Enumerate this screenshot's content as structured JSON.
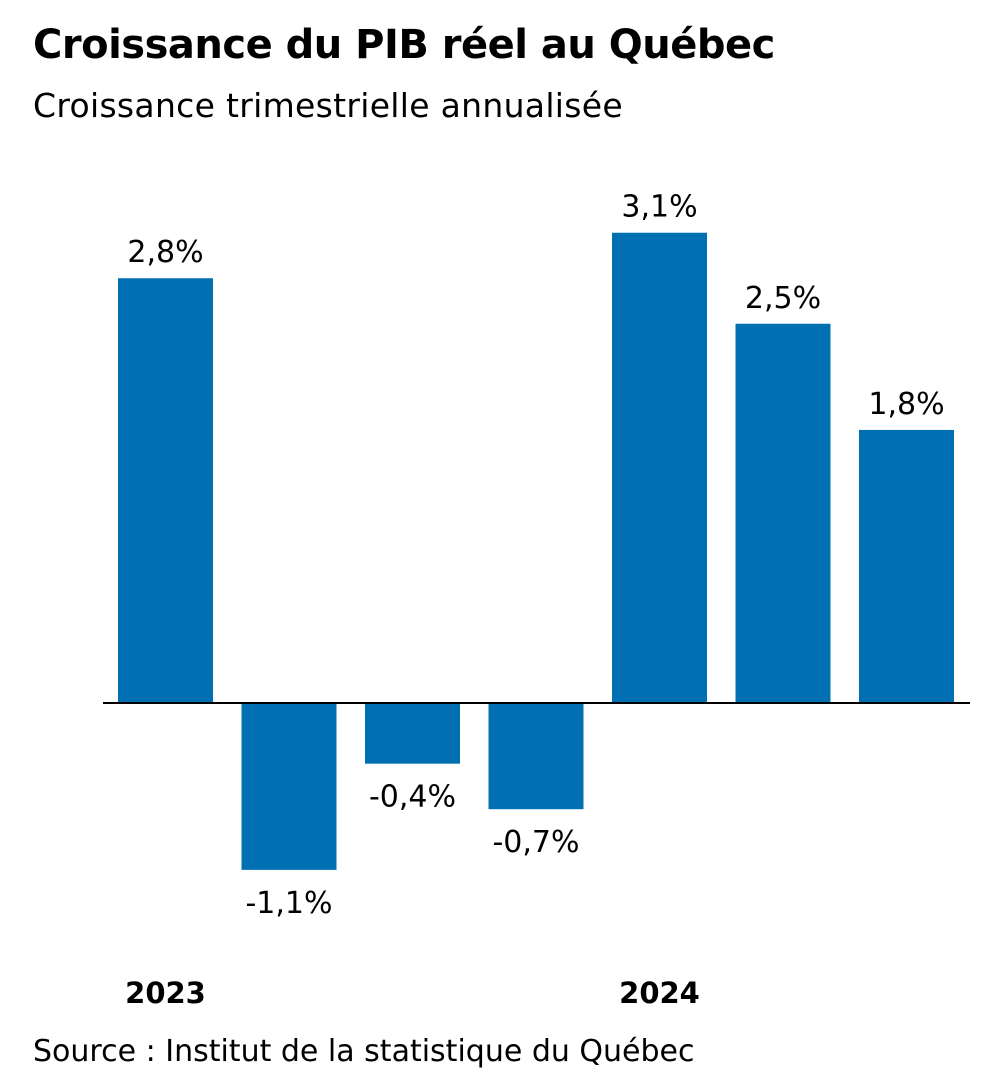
{
  "title": "Croissance du PIB réel au Québec",
  "subtitle": "Croissance trimestrielle annualisée",
  "source": "Source : Institut de la statistique du Québec",
  "colors": {
    "bar": "#0070b3",
    "axis": "#000000"
  },
  "chart_data": {
    "type": "bar",
    "categories": [
      "",
      "",
      "",
      "",
      "",
      "",
      ""
    ],
    "year_labels": [
      {
        "label": "2023",
        "index": 0
      },
      {
        "label": "2024",
        "index": 4
      }
    ],
    "values": [
      2.8,
      -1.1,
      -0.4,
      -0.7,
      3.1,
      2.5,
      1.8
    ],
    "value_labels": [
      "2,8%",
      "-1,1%",
      "-0,4%",
      "-0,7%",
      "3,1%",
      "2,5%",
      "1,8%"
    ],
    "ylim": [
      -1.1,
      3.1
    ],
    "grid": false,
    "legend": "none"
  }
}
